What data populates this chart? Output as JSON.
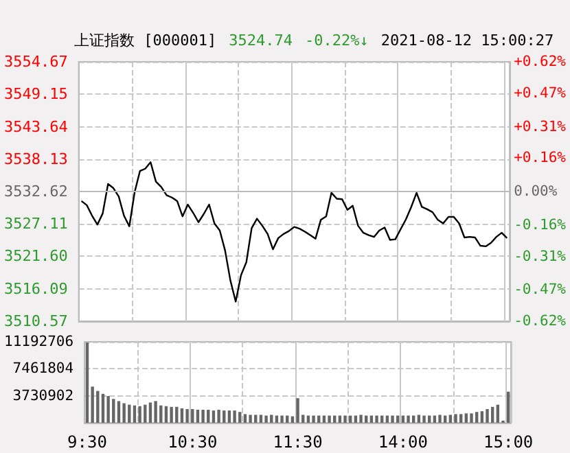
{
  "chart_data": [
    {
      "type": "line",
      "title": "上证指数 [000001]",
      "annotations": [
        "3524.74",
        "-0.22%↓",
        "2021-08-12 15:00:27"
      ],
      "categories": [
        null,
        null,
        null,
        null,
        null,
        null,
        null,
        null,
        null,
        null,
        null,
        null,
        null,
        null,
        null,
        null,
        null,
        null,
        null,
        null,
        null,
        null,
        null,
        null,
        null,
        null,
        null,
        null,
        null,
        null,
        null,
        null,
        null,
        null,
        null,
        null,
        null,
        null,
        null,
        null,
        null,
        null,
        null,
        null,
        null,
        null,
        null,
        null,
        null,
        null,
        null,
        null,
        null,
        null,
        null,
        null,
        null,
        null,
        null,
        null,
        null,
        null,
        null,
        null,
        null,
        null,
        null,
        null,
        null,
        null,
        null,
        null,
        null,
        null,
        null,
        null,
        null,
        null,
        null,
        null,
        null
      ],
      "series": [
        {
          "color": "#000000",
          "values": [
            3531.0,
            3530.3,
            3528.5,
            3527.0,
            3528.9,
            3533.9,
            3533.2,
            3531.8,
            3528.5,
            3526.7,
            3532.5,
            3536.1,
            3536.5,
            3537.6,
            3534.3,
            3533.4,
            3532.0,
            3531.6,
            3531.0,
            3528.4,
            3530.4,
            3529.0,
            3527.4,
            3528.8,
            3530.4,
            3527.2,
            3526.0,
            3522.6,
            3517.5,
            3513.9,
            3518.4,
            3520.6,
            3526.4,
            3528.0,
            3526.8,
            3525.4,
            3522.8,
            3524.7,
            3525.4,
            3525.9,
            3526.6,
            3526.3,
            3525.8,
            3525.2,
            3524.6,
            3527.8,
            3528.4,
            3532.4,
            3531.4,
            3531.3,
            3529.5,
            3530.2,
            3526.8,
            3525.6,
            3525.2,
            3524.9,
            3526.0,
            3526.5,
            3524.4,
            3524.5,
            3526.2,
            3527.9,
            3530.0,
            3532.4,
            3530.0,
            3529.6,
            3529.1,
            3527.8,
            3527.2,
            3528.3,
            3528.3,
            3527.2,
            3524.8,
            3524.9,
            3524.8,
            3523.4,
            3523.3,
            3523.9,
            3524.9,
            3525.6,
            3524.7
          ]
        }
      ],
      "ylim": [
        3510.57,
        3554.67
      ],
      "yticks": [
        3510.57,
        3516.09,
        {
          "value": 3521.6,
          "label": "3521.60"
        },
        3527.11,
        3532.62,
        3538.13,
        3543.64,
        3549.15,
        3554.67
      ],
      "y2lim": [
        -0.62,
        0.62
      ],
      "y2ticks": [
        {
          "value": -0.62,
          "label": "-0.62%"
        },
        {
          "value": -0.47,
          "label": "-0.47%"
        },
        {
          "value": -0.31,
          "label": "-0.31%"
        },
        {
          "value": -0.16,
          "label": "-0.16%"
        },
        {
          "value": 0,
          "label": "0.00%"
        },
        {
          "value": 0.16,
          "label": "+0.16%"
        },
        {
          "value": 0.31,
          "label": "+0.31%"
        },
        {
          "value": 0.47,
          "label": "+0.47%"
        },
        {
          "value": 0.62,
          "label": "+0.62%"
        }
      ],
      "ref_lines": [
        {
          "axis": "y",
          "value": 3532.62,
          "label": null,
          "color": "#bbbbbb",
          "line_style": "solid"
        }
      ],
      "grid": true,
      "line_style": "solid",
      "tick_labels": "y"
    },
    {
      "type": "bar",
      "categories": [
        "9:30",
        null,
        null,
        null,
        null,
        null,
        null,
        null,
        null,
        null,
        null,
        null,
        null,
        null,
        null,
        null,
        null,
        null,
        null,
        null,
        "10:30",
        null,
        null,
        null,
        null,
        null,
        null,
        null,
        null,
        null,
        null,
        null,
        null,
        null,
        null,
        null,
        null,
        null,
        null,
        null,
        "11:30",
        null,
        null,
        null,
        null,
        null,
        null,
        null,
        null,
        null,
        null,
        null,
        null,
        null,
        null,
        null,
        null,
        null,
        null,
        null,
        "14:00",
        null,
        null,
        null,
        null,
        null,
        null,
        null,
        null,
        null,
        null,
        null,
        null,
        null,
        null,
        null,
        null,
        null,
        null,
        null,
        "15:00"
      ],
      "series": [
        {
          "color": "#666666",
          "values": [
            11100000,
            5000000,
            4400000,
            4000000,
            3700000,
            3300000,
            3000000,
            2700000,
            2500000,
            2400000,
            2300000,
            2500000,
            2800000,
            3000000,
            2400000,
            2300000,
            2200000,
            2200000,
            2000000,
            1900000,
            1900000,
            1800000,
            1800000,
            1800000,
            1700000,
            1800000,
            1700000,
            1700000,
            1700000,
            1500000,
            1200000,
            1100000,
            1100000,
            1100000,
            1000000,
            1100000,
            1000000,
            1000000,
            1000000,
            900000,
            3400000,
            1100000,
            1000000,
            1000000,
            1000000,
            1000000,
            1000000,
            1000000,
            1000000,
            1000000,
            1000000,
            1000000,
            1100000,
            1000000,
            1000000,
            1000000,
            1000000,
            1000000,
            1000000,
            1000000,
            1000000,
            1000000,
            1000000,
            1100000,
            1000000,
            1000000,
            1000000,
            1100000,
            1000000,
            1100000,
            1200000,
            1200000,
            1300000,
            1300000,
            1500000,
            1600000,
            1900000,
            2200000,
            2500000,
            300000,
            4300000
          ]
        }
      ],
      "ylim": [
        0,
        11192706
      ],
      "yticks": [
        3730902,
        7461804,
        11192706
      ],
      "grid": true
    }
  ]
}
